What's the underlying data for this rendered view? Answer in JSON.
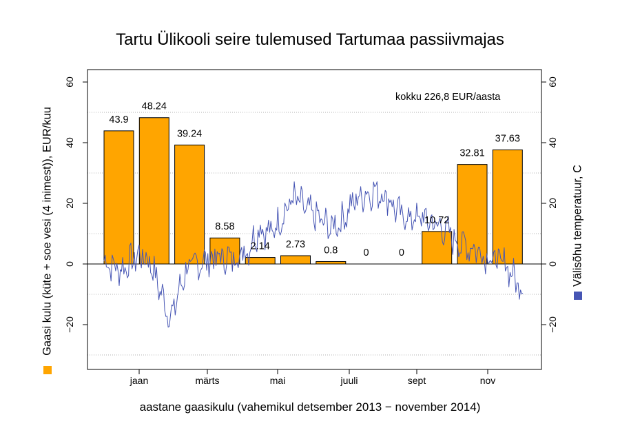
{
  "chart_data": {
    "type": "bar",
    "title": "Tartu Ülikooli seire tulemused Tartumaa passiivmajas",
    "xlabel": "aastane gaasikulu  (vahemikul detsember 2013 − november 2014)",
    "ylabel_left": "Gaasi kulu (küte + soe vesi (4 inimest)), EUR/kuu",
    "ylabel_right": "Välisõhu temperatuur, C",
    "annotation": "kokku 226,8 EUR/aasta",
    "ylim": [
      -33,
      60
    ],
    "yticks": [
      -20,
      0,
      20,
      40,
      60
    ],
    "yticklabels": [
      "−20",
      "0",
      "20",
      "40",
      "60"
    ],
    "y2lim": [
      -33,
      60
    ],
    "y2ticks": [
      -20,
      0,
      20,
      40,
      60
    ],
    "y2ticklabels": [
      "−20",
      "0",
      "20",
      "40",
      "60"
    ],
    "grid_y": [
      -30,
      -10,
      10,
      30,
      50
    ],
    "xtick_labels": [
      "jaan",
      "märts",
      "mai",
      "juuli",
      "sept",
      "nov"
    ],
    "bars": {
      "name": "Gaasi kulu",
      "color": "#ffa500",
      "values": [
        43.9,
        48.24,
        39.24,
        8.58,
        2.14,
        2.73,
        0.8,
        0,
        0,
        10.72,
        32.81,
        37.63
      ],
      "labels": [
        "43.9",
        "48.24",
        "39.24",
        "8.58",
        "2.14",
        "2.73",
        "0.8",
        "0",
        "0",
        "10.72",
        "32.81",
        "37.63"
      ]
    },
    "line": {
      "name": "Välisõhu temperatuur",
      "color": "#4655b4",
      "x": [
        "2013-12-01",
        "2013-12-15",
        "2014-01-01",
        "2014-01-10",
        "2014-01-20",
        "2014-01-28",
        "2014-02-10",
        "2014-02-25",
        "2014-03-10",
        "2014-03-25",
        "2014-04-05",
        "2014-04-15",
        "2014-04-25",
        "2014-05-05",
        "2014-05-15",
        "2014-05-25",
        "2014-06-05",
        "2014-06-15",
        "2014-06-25",
        "2014-07-05",
        "2014-07-15",
        "2014-07-25",
        "2014-08-05",
        "2014-08-15",
        "2014-08-25",
        "2014-09-05",
        "2014-09-20",
        "2014-10-05",
        "2014-10-20",
        "2014-11-01",
        "2014-11-15",
        "2014-11-30"
      ],
      "y": [
        1,
        -2,
        3,
        1,
        -10,
        -18,
        -2,
        1,
        2,
        2,
        5,
        12,
        10,
        16,
        22,
        18,
        15,
        12,
        14,
        20,
        23,
        24,
        22,
        16,
        15,
        15,
        12,
        7,
        5,
        2,
        0,
        -9
      ]
    }
  },
  "legend": {
    "bars_color": "#ffa500",
    "line_color": "#4655b4"
  }
}
